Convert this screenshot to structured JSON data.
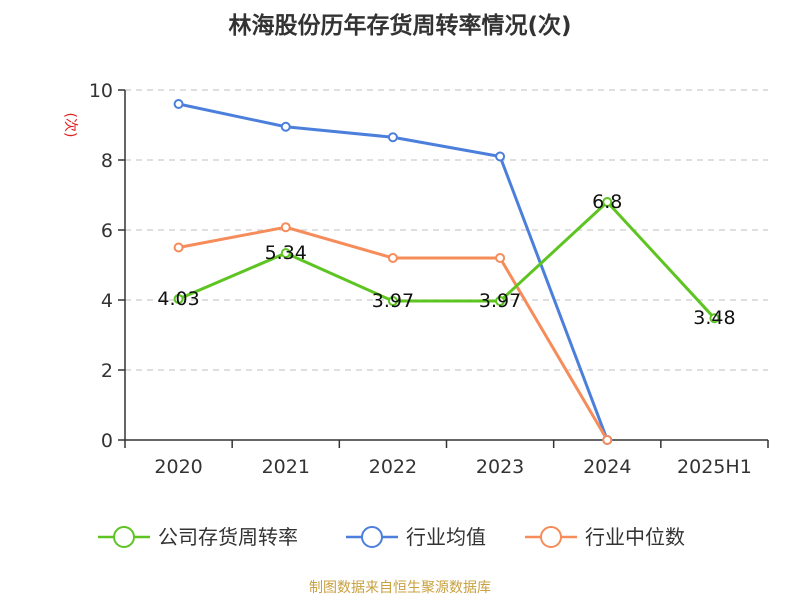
{
  "title": "林海股份历年存货周转率情况(次)",
  "source": "制图数据来自恒生聚源数据库",
  "colors": {
    "company": "#5ec422",
    "industry_avg": "#4c7fdc",
    "industry_median": "#f58c5a",
    "unit": "#e02020",
    "grid": "#cccccc",
    "axis": "#333333"
  },
  "chart_data": {
    "type": "line",
    "title": "林海股份历年存货周转率情况(次)",
    "ylabel": "(次)",
    "xlabel": "",
    "categories": [
      "2020",
      "2021",
      "2022",
      "2023",
      "2024",
      "2025H1"
    ],
    "ylim": [
      0,
      10
    ],
    "yticks": [
      "0",
      "2",
      "4",
      "6",
      "8",
      "10"
    ],
    "grid": "horizontal-dashed",
    "legend_position": "bottom",
    "series": [
      {
        "name": "公司存货周转率",
        "key": "company",
        "values": [
          4.03,
          5.34,
          3.97,
          3.97,
          6.8,
          3.48
        ],
        "labels": [
          "4.03",
          "5.34",
          "3.97",
          "3.97",
          "6.8",
          "3.48"
        ]
      },
      {
        "name": "行业均值",
        "key": "industry_avg",
        "values": [
          9.6,
          8.95,
          8.65,
          8.1,
          0,
          null
        ],
        "labels": []
      },
      {
        "name": "行业中位数",
        "key": "industry_median",
        "values": [
          5.5,
          6.08,
          5.2,
          5.2,
          0,
          null
        ],
        "labels": []
      }
    ]
  }
}
